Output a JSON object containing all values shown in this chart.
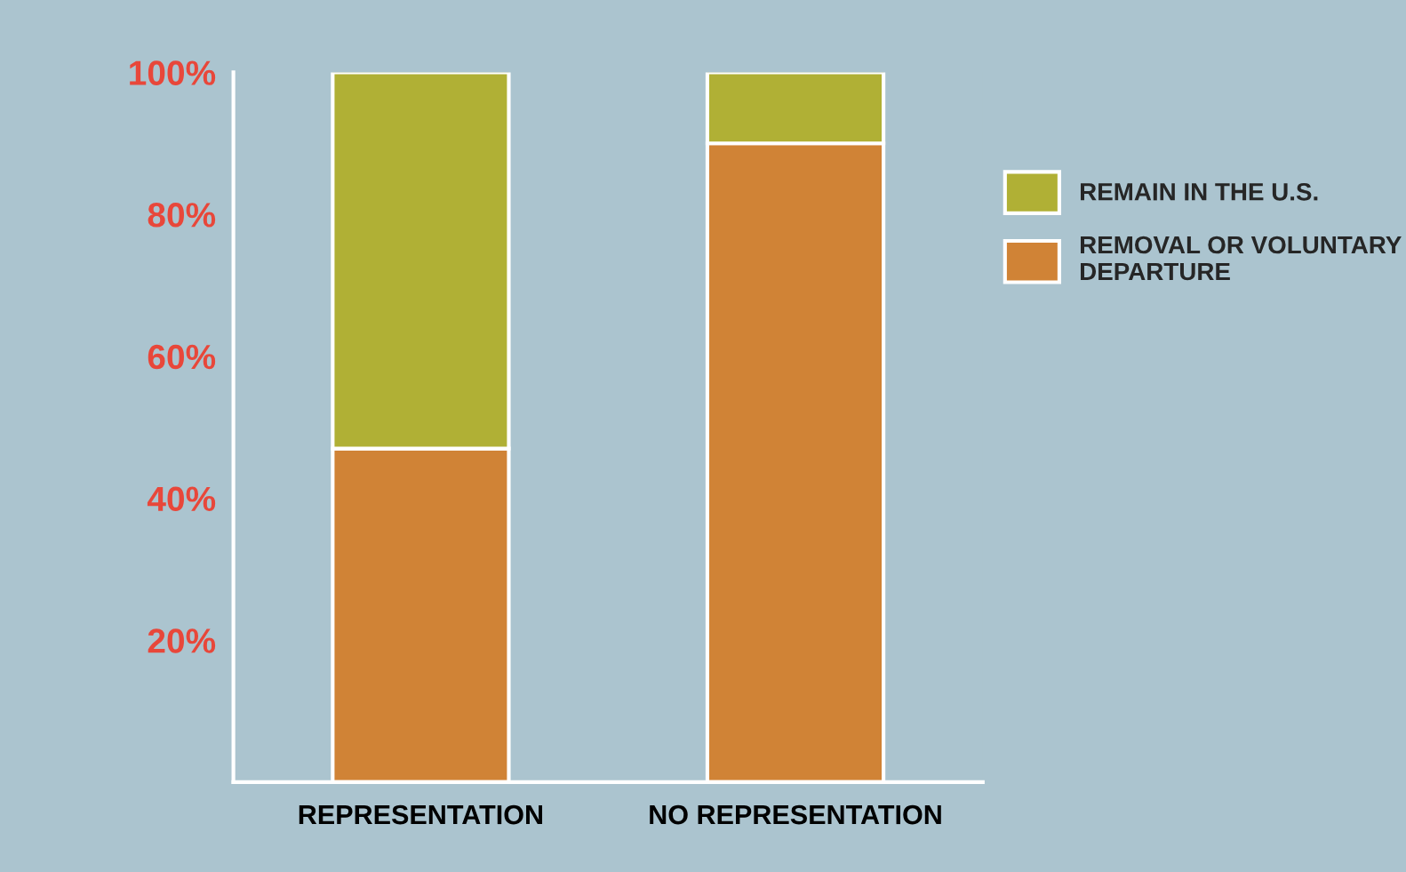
{
  "chart_data": {
    "type": "bar",
    "stacked": true,
    "categories": [
      "REPRESENTATION",
      "NO REPRESENTATION"
    ],
    "series": [
      {
        "name": "REMOVAL OR VOLUNTARY\nDEPARTURE",
        "color": "#d08336",
        "values": [
          47,
          90
        ]
      },
      {
        "name": "REMAIN IN THE U.S.",
        "color": "#b0b035",
        "values": [
          53,
          10
        ]
      }
    ],
    "ylim": [
      0,
      100
    ],
    "yticks": [
      {
        "value": 20,
        "label": "20%"
      },
      {
        "value": 40,
        "label": "40%"
      },
      {
        "value": 60,
        "label": "60%"
      },
      {
        "value": 80,
        "label": "80%"
      },
      {
        "value": 100,
        "label": "100%"
      }
    ],
    "grid": false,
    "legend": "right"
  }
}
